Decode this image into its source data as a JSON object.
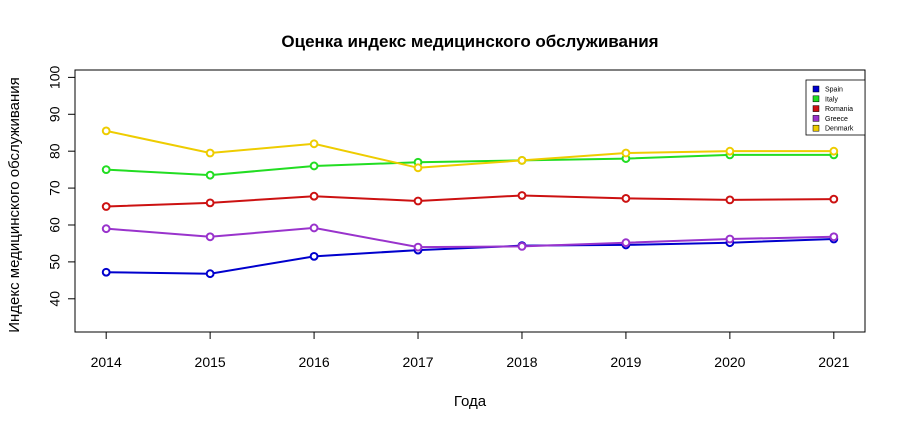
{
  "chart_data": {
    "type": "line",
    "title": "Оценка индекс медицинского обслуживания",
    "xlabel": "Года",
    "ylabel": "Индекс медицинского обслуживания",
    "x": [
      2014,
      2015,
      2016,
      2017,
      2018,
      2019,
      2020,
      2021
    ],
    "xlim": [
      2013.7,
      2021.3
    ],
    "ylim": [
      31,
      102
    ],
    "yticks": [
      40,
      50,
      60,
      70,
      80,
      90,
      100
    ],
    "grid": false,
    "legend_position": "top-right",
    "series": [
      {
        "name": "Spain",
        "color": "#0000cd",
        "values": [
          47.2,
          46.8,
          51.5,
          53.2,
          54.4,
          54.6,
          55.2,
          56.2
        ]
      },
      {
        "name": "Italy",
        "color": "#22dd22",
        "values": [
          75.0,
          73.5,
          76.0,
          77.0,
          77.5,
          78.0,
          79.0,
          79.0
        ]
      },
      {
        "name": "Romania",
        "color": "#cc1111",
        "values": [
          65.0,
          66.0,
          67.8,
          66.5,
          68.0,
          67.2,
          66.8,
          67.0
        ]
      },
      {
        "name": "Greece",
        "color": "#9933cc",
        "values": [
          59.0,
          56.8,
          59.2,
          54.0,
          54.2,
          55.2,
          56.2,
          56.8
        ]
      },
      {
        "name": "Denmark",
        "color": "#eecc00",
        "values": [
          85.5,
          79.5,
          82.0,
          75.5,
          77.5,
          79.5,
          80.0,
          80.0
        ]
      }
    ]
  }
}
